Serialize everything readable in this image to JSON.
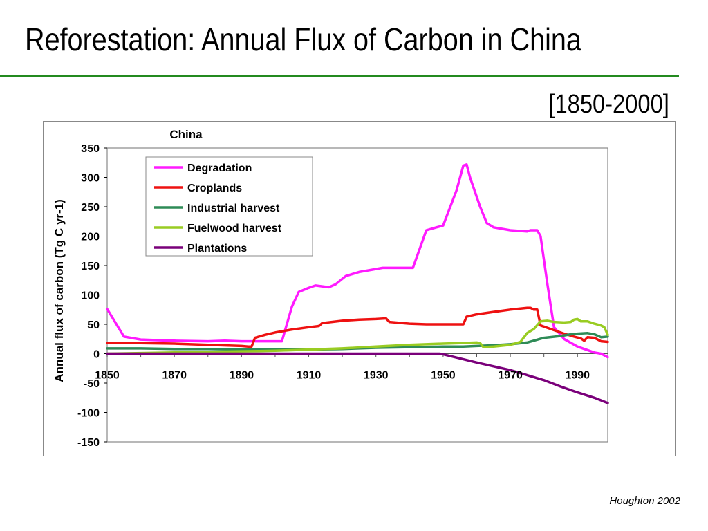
{
  "slide": {
    "title": "Reforestation: Annual Flux of Carbon in China",
    "date_range": "[1850-2000]",
    "credit": "Houghton 2002"
  },
  "chart_data": {
    "type": "line",
    "title": "China",
    "xlabel": "",
    "ylabel": "Annual flux of carbon (Tg C yr-1)",
    "xlim": [
      1850,
      1999
    ],
    "ylim": [
      -150,
      350
    ],
    "x_ticks": [
      1850,
      1870,
      1890,
      1910,
      1930,
      1950,
      1970,
      1990
    ],
    "y_ticks": [
      350,
      300,
      250,
      200,
      150,
      100,
      50,
      0,
      -50,
      -100,
      -150
    ],
    "grid": false,
    "legend_position": "top-left",
    "series": [
      {
        "name": "Degradation",
        "color": "#ff1aff",
        "points": [
          [
            1850,
            76
          ],
          [
            1855,
            29
          ],
          [
            1860,
            24
          ],
          [
            1865,
            23
          ],
          [
            1870,
            22
          ],
          [
            1880,
            21
          ],
          [
            1885,
            22
          ],
          [
            1890,
            21
          ],
          [
            1900,
            21
          ],
          [
            1902,
            21
          ],
          [
            1905,
            80
          ],
          [
            1907,
            105
          ],
          [
            1910,
            112
          ],
          [
            1912,
            116
          ],
          [
            1916,
            113
          ],
          [
            1918,
            118
          ],
          [
            1921,
            132
          ],
          [
            1925,
            139
          ],
          [
            1930,
            144
          ],
          [
            1932,
            146
          ],
          [
            1941,
            146
          ],
          [
            1945,
            210
          ],
          [
            1948,
            215
          ],
          [
            1950,
            218
          ],
          [
            1954,
            278
          ],
          [
            1956,
            320
          ],
          [
            1957,
            322
          ],
          [
            1958,
            300
          ],
          [
            1961,
            250
          ],
          [
            1963,
            222
          ],
          [
            1965,
            215
          ],
          [
            1970,
            210
          ],
          [
            1975,
            208
          ],
          [
            1976,
            210
          ],
          [
            1978,
            210
          ],
          [
            1979,
            200
          ],
          [
            1981,
            120
          ],
          [
            1983,
            45
          ],
          [
            1986,
            25
          ],
          [
            1990,
            12
          ],
          [
            1995,
            2
          ],
          [
            1997,
            0
          ],
          [
            1999,
            -6
          ]
        ]
      },
      {
        "name": "Croplands",
        "color": "#ee1111",
        "points": [
          [
            1850,
            18
          ],
          [
            1860,
            18
          ],
          [
            1870,
            17
          ],
          [
            1880,
            15
          ],
          [
            1890,
            13
          ],
          [
            1892,
            12
          ],
          [
            1893,
            12
          ],
          [
            1894,
            27
          ],
          [
            1897,
            32
          ],
          [
            1900,
            36
          ],
          [
            1905,
            41
          ],
          [
            1910,
            45
          ],
          [
            1913,
            47
          ],
          [
            1914,
            52
          ],
          [
            1920,
            56
          ],
          [
            1925,
            58
          ],
          [
            1930,
            59
          ],
          [
            1933,
            60
          ],
          [
            1934,
            54
          ],
          [
            1940,
            51
          ],
          [
            1945,
            50
          ],
          [
            1950,
            50
          ],
          [
            1956,
            50
          ],
          [
            1957,
            63
          ],
          [
            1960,
            67
          ],
          [
            1965,
            71
          ],
          [
            1970,
            75
          ],
          [
            1975,
            78
          ],
          [
            1976,
            78
          ],
          [
            1977,
            75
          ],
          [
            1978,
            75
          ],
          [
            1979,
            48
          ],
          [
            1983,
            40
          ],
          [
            1986,
            34
          ],
          [
            1989,
            29
          ],
          [
            1991,
            26
          ],
          [
            1992,
            22
          ],
          [
            1993,
            28
          ],
          [
            1995,
            27
          ],
          [
            1996,
            24
          ],
          [
            1997,
            21
          ],
          [
            1999,
            20
          ]
        ]
      },
      {
        "name": "Industrial harvest",
        "color": "#2e8b57",
        "points": [
          [
            1850,
            9
          ],
          [
            1860,
            9
          ],
          [
            1870,
            8
          ],
          [
            1880,
            8
          ],
          [
            1890,
            7
          ],
          [
            1900,
            7
          ],
          [
            1910,
            7
          ],
          [
            1920,
            8
          ],
          [
            1930,
            10
          ],
          [
            1940,
            11
          ],
          [
            1950,
            12
          ],
          [
            1956,
            12
          ],
          [
            1960,
            13
          ],
          [
            1964,
            14
          ],
          [
            1970,
            16
          ],
          [
            1975,
            19
          ],
          [
            1980,
            27
          ],
          [
            1985,
            30
          ],
          [
            1988,
            33
          ],
          [
            1990,
            34
          ],
          [
            1993,
            35
          ],
          [
            1995,
            33
          ],
          [
            1997,
            28
          ],
          [
            1999,
            29
          ]
        ]
      },
      {
        "name": "Fuelwood harvest",
        "color": "#99cc22",
        "points": [
          [
            1850,
            0
          ],
          [
            1860,
            1
          ],
          [
            1870,
            2
          ],
          [
            1880,
            3
          ],
          [
            1890,
            4
          ],
          [
            1900,
            5
          ],
          [
            1910,
            7
          ],
          [
            1920,
            9
          ],
          [
            1930,
            12
          ],
          [
            1940,
            15
          ],
          [
            1950,
            17
          ],
          [
            1955,
            18
          ],
          [
            1960,
            19
          ],
          [
            1961,
            18
          ],
          [
            1962,
            11
          ],
          [
            1965,
            12
          ],
          [
            1970,
            15
          ],
          [
            1973,
            20
          ],
          [
            1975,
            35
          ],
          [
            1977,
            42
          ],
          [
            1979,
            55
          ],
          [
            1981,
            56
          ],
          [
            1983,
            54
          ],
          [
            1986,
            53
          ],
          [
            1988,
            54
          ],
          [
            1989,
            58
          ],
          [
            1990,
            59
          ],
          [
            1991,
            55
          ],
          [
            1993,
            55
          ],
          [
            1995,
            51
          ],
          [
            1997,
            48
          ],
          [
            1998,
            45
          ],
          [
            1999,
            32
          ]
        ]
      },
      {
        "name": "Plantations",
        "color": "#7a007a",
        "points": [
          [
            1850,
            0
          ],
          [
            1900,
            0
          ],
          [
            1949,
            0
          ],
          [
            1950,
            -1
          ],
          [
            1960,
            -15
          ],
          [
            1970,
            -28
          ],
          [
            1980,
            -45
          ],
          [
            1985,
            -56
          ],
          [
            1990,
            -66
          ],
          [
            1995,
            -75
          ],
          [
            1999,
            -84
          ]
        ]
      }
    ]
  }
}
